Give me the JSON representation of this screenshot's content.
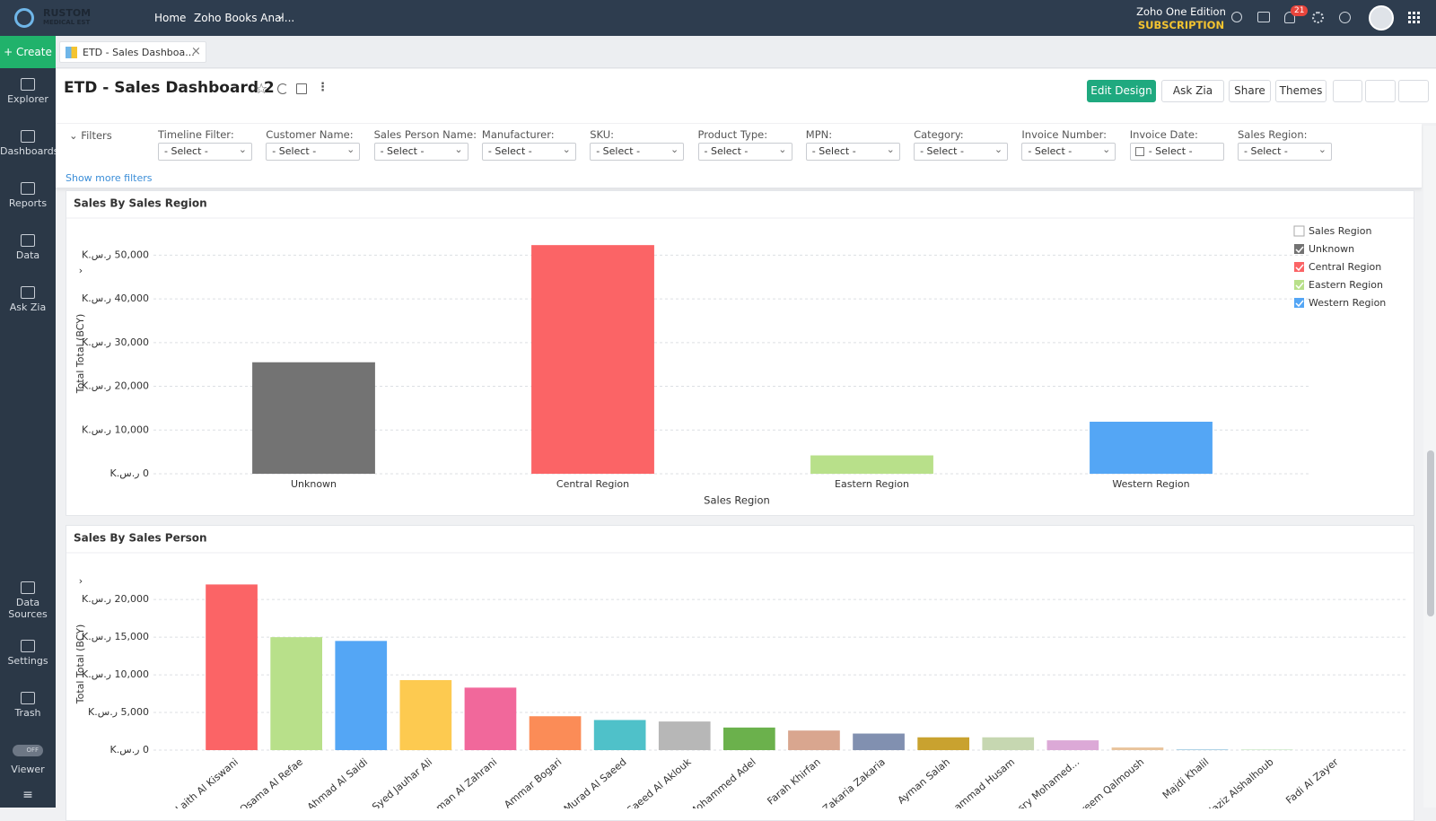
{
  "header": {
    "logo": "RUSTOM",
    "logo_sub": "MEDICAL EST",
    "nav": [
      "Home",
      "Zoho Books Anal..."
    ],
    "edition": "Zoho One Edition",
    "subscription": "SUBSCRIPTION",
    "notifications": "21"
  },
  "sidebar": {
    "create": "Create",
    "items": [
      "Explorer",
      "Dashboards",
      "Reports",
      "Data",
      "Ask Zia"
    ],
    "bottom_items": [
      "Data Sources",
      "Settings",
      "Trash"
    ],
    "toggle": "OFF",
    "viewer": "Viewer"
  },
  "tab": {
    "label": "ETD - Sales Dashboa..."
  },
  "dashboard": {
    "title": "ETD - Sales Dashboard 2",
    "buttons": [
      "Edit Design",
      "Ask Zia",
      "Share",
      "Themes"
    ]
  },
  "filters": {
    "label": "Filters",
    "show_more": "Show more filters",
    "placeholder": "- Select -",
    "items": [
      "Timeline Filter:",
      "Customer Name:",
      "Sales Person Name:",
      "Manufacturer:",
      "SKU:",
      "Product Type:",
      "MPN:",
      "Category:",
      "Invoice Number:",
      "Invoice Date:",
      "Sales Region:"
    ]
  },
  "chart_data": [
    {
      "type": "bar",
      "title": "Sales By Sales Region",
      "y_label": "Total Total (BCY)",
      "x_label": "Sales Region",
      "categories": [
        "Unknown",
        "Central Region",
        "Eastern Region",
        "Western Region"
      ],
      "values": [
        25500,
        52300,
        4200,
        11900
      ],
      "colors": [
        "#737373",
        "#fb6466",
        "#b8e08a",
        "#54a6f5"
      ],
      "ylim": [
        0,
        55000
      ],
      "yticks": [
        {
          "value": 0,
          "label": "0 ر.س.K"
        },
        {
          "value": 10000,
          "label": "10,000 ر.س.K"
        },
        {
          "value": 20000,
          "label": "20,000 ر.س.K"
        },
        {
          "value": 30000,
          "label": "30,000 ر.س.K"
        },
        {
          "value": 40000,
          "label": "40,000 ر.س.K"
        },
        {
          "value": 50000,
          "label": "50,000 ر.س.K"
        }
      ],
      "grid": true,
      "legend": "top-right",
      "legend_title": "Sales Region"
    },
    {
      "type": "bar",
      "title": "Sales By Sales Person",
      "y_label": "Total Total (BCY)",
      "categories": [
        "Laith Al Kiswani",
        "Osama Al Refae",
        "Ahmad Al Saidi",
        "Syed Jauhar Ali",
        "hman Al Zahrani",
        "Ammar Bogari",
        "Murad Al Saeed",
        "Saeed Al Aklouk",
        "Mohammed Adel",
        "Farah Khirfan",
        "d Zakaria Zakaria",
        "Ayman Salah",
        "ohammad Husam",
        "Yosry Mohamed...",
        "areem Qalmoush",
        "Majdi Khalil",
        "ulaziz Alshalhoub",
        "Fadi Al Zayer"
      ],
      "values": [
        22000,
        15000,
        14500,
        9300,
        8300,
        4500,
        4000,
        3800,
        3000,
        2600,
        2200,
        1700,
        1700,
        1300,
        350,
        100,
        50,
        0
      ],
      "colors": [
        "#fb6466",
        "#b8e08a",
        "#54a6f5",
        "#fdca50",
        "#f1689b",
        "#fb8c57",
        "#4fc1c9",
        "#b7b7b7",
        "#6bb14c",
        "#d9a68f",
        "#8190b0",
        "#c9a22f",
        "#c6d7b1",
        "#dca9d7",
        "#e9c49c",
        "#9ecae1",
        "#a1d99b",
        "#fdd0a2"
      ],
      "ylim": [
        0,
        23000
      ],
      "yticks": [
        {
          "value": 0,
          "label": "0 ر.س.K"
        },
        {
          "value": 5000,
          "label": "5,000 ر.س.K"
        },
        {
          "value": 10000,
          "label": "10,000 ر.س.K"
        },
        {
          "value": 15000,
          "label": "15,000 ر.س.K"
        },
        {
          "value": 20000,
          "label": "20,000 ر.س.K"
        }
      ],
      "grid": true
    }
  ]
}
